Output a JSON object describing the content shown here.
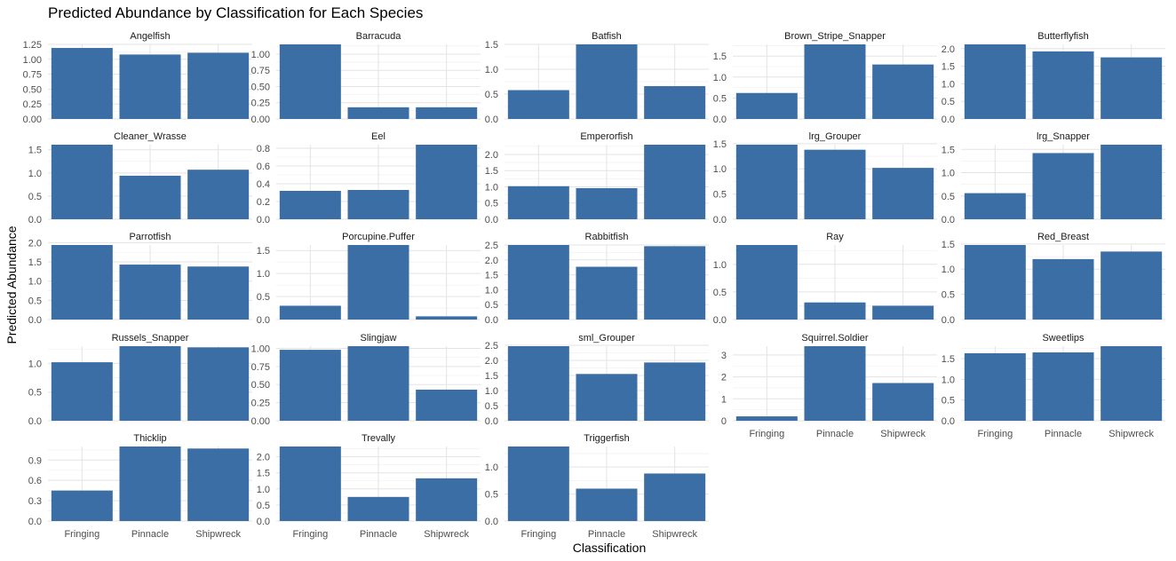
{
  "chart_data": {
    "type": "bar",
    "title": "Predicted Abundance by Classification for Each Species",
    "xlabel": "Classification",
    "ylabel": "Predicted Abundance",
    "categories": [
      "Fringing",
      "Pinnacle",
      "Shipwreck"
    ],
    "bar_color": "#3A6EA5",
    "grid": true,
    "facets": [
      {
        "name": "Angelfish",
        "values": [
          1.19,
          1.08,
          1.11
        ],
        "ylim": [
          0,
          1.25
        ],
        "yticks": [
          "0.00",
          "0.25",
          "0.50",
          "0.75",
          "1.00",
          "1.25"
        ]
      },
      {
        "name": "Barracuda",
        "values": [
          1.15,
          0.18,
          0.18
        ],
        "ylim": [
          0,
          1.15
        ],
        "yticks": [
          "0.00",
          "0.25",
          "0.50",
          "0.75",
          "1.00"
        ]
      },
      {
        "name": "Batfish",
        "values": [
          0.58,
          1.5,
          0.66
        ],
        "ylim": [
          0,
          1.5
        ],
        "yticks": [
          "0.0",
          "0.5",
          "1.0",
          "1.5"
        ]
      },
      {
        "name": "Brown_Stripe_Snapper",
        "values": [
          0.62,
          1.78,
          1.3
        ],
        "ylim": [
          0,
          1.78
        ],
        "yticks": [
          "0.0",
          "0.5",
          "1.0",
          "1.5"
        ]
      },
      {
        "name": "Butterflyfish",
        "values": [
          2.12,
          1.92,
          1.75
        ],
        "ylim": [
          0,
          2.12
        ],
        "yticks": [
          "0.0",
          "0.5",
          "1.0",
          "1.5",
          "2.0"
        ]
      },
      {
        "name": "Cleaner_Wrasse",
        "values": [
          1.61,
          0.94,
          1.07
        ],
        "ylim": [
          0,
          1.61
        ],
        "yticks": [
          "0.0",
          "0.5",
          "1.0",
          "1.5"
        ]
      },
      {
        "name": "Eel",
        "values": [
          0.32,
          0.33,
          0.84
        ],
        "ylim": [
          0,
          0.84
        ],
        "yticks": [
          "0.0",
          "0.2",
          "0.4",
          "0.6",
          "0.8"
        ]
      },
      {
        "name": "Emperorfish",
        "values": [
          1.02,
          0.96,
          2.3
        ],
        "ylim": [
          0,
          2.3
        ],
        "yticks": [
          "0.0",
          "0.5",
          "1.0",
          "1.5",
          "2.0"
        ]
      },
      {
        "name": "lrg_Grouper",
        "values": [
          1.48,
          1.38,
          1.02
        ],
        "ylim": [
          0,
          1.48
        ],
        "yticks": [
          "0.0",
          "0.5",
          "1.0",
          "1.5"
        ]
      },
      {
        "name": "lrg_Snapper",
        "values": [
          0.56,
          1.42,
          1.6
        ],
        "ylim": [
          0,
          1.6
        ],
        "yticks": [
          "0.0",
          "0.5",
          "1.0",
          "1.5"
        ]
      },
      {
        "name": "Parrotfish",
        "values": [
          1.94,
          1.43,
          1.38
        ],
        "ylim": [
          0,
          1.94
        ],
        "yticks": [
          "0.0",
          "0.5",
          "1.0",
          "1.5",
          "2.0"
        ]
      },
      {
        "name": "Porcupine.Puffer",
        "values": [
          0.3,
          1.62,
          0.07
        ],
        "ylim": [
          0,
          1.62
        ],
        "yticks": [
          "0.0",
          "0.5",
          "1.0",
          "1.5"
        ]
      },
      {
        "name": "Rabbitfish",
        "values": [
          2.5,
          1.77,
          2.46
        ],
        "ylim": [
          0,
          2.5
        ],
        "yticks": [
          "0.0",
          "0.5",
          "1.0",
          "1.5",
          "2.0",
          "2.5"
        ]
      },
      {
        "name": "Ray",
        "values": [
          1.35,
          0.31,
          0.25
        ],
        "ylim": [
          0,
          1.35
        ],
        "yticks": [
          "0.0",
          "0.5",
          "1.0"
        ]
      },
      {
        "name": "Red_Breast",
        "values": [
          1.48,
          1.2,
          1.35
        ],
        "ylim": [
          0,
          1.48
        ],
        "yticks": [
          "0.0",
          "0.5",
          "1.0",
          "1.5"
        ]
      },
      {
        "name": "Russels_Snapper",
        "values": [
          1.02,
          1.3,
          1.28
        ],
        "ylim": [
          0,
          1.3
        ],
        "yticks": [
          "0.0",
          "0.5",
          "1.0"
        ]
      },
      {
        "name": "Slingjaw",
        "values": [
          0.98,
          1.03,
          0.43
        ],
        "ylim": [
          0,
          1.03
        ],
        "yticks": [
          "0.00",
          "0.25",
          "0.50",
          "0.75",
          "1.00"
        ]
      },
      {
        "name": "sml_Grouper",
        "values": [
          2.47,
          1.55,
          1.93
        ],
        "ylim": [
          0,
          2.47
        ],
        "yticks": [
          "0.0",
          "0.5",
          "1.0",
          "1.5",
          "2.0",
          "2.5"
        ]
      },
      {
        "name": "Squirrel.Soldier",
        "values": [
          0.2,
          3.4,
          1.72
        ],
        "ylim": [
          0,
          3.4
        ],
        "yticks": [
          "0",
          "1",
          "2",
          "3"
        ]
      },
      {
        "name": "Sweetlips",
        "values": [
          1.63,
          1.65,
          1.8
        ],
        "ylim": [
          0,
          1.8
        ],
        "yticks": [
          "0.0",
          "0.5",
          "1.0",
          "1.5"
        ]
      },
      {
        "name": "Thicklip",
        "values": [
          0.45,
          1.1,
          1.07
        ],
        "ylim": [
          0,
          1.1
        ],
        "yticks": [
          "0.0",
          "0.3",
          "0.6",
          "0.9"
        ]
      },
      {
        "name": "Trevally",
        "values": [
          2.32,
          0.75,
          1.33
        ],
        "ylim": [
          0,
          2.32
        ],
        "yticks": [
          "0.0",
          "0.5",
          "1.0",
          "1.5",
          "2.0"
        ]
      },
      {
        "name": "Triggerfish",
        "values": [
          1.38,
          0.6,
          0.88
        ],
        "ylim": [
          0,
          1.38
        ],
        "yticks": [
          "0.0",
          "0.5",
          "1.0"
        ]
      }
    ]
  }
}
